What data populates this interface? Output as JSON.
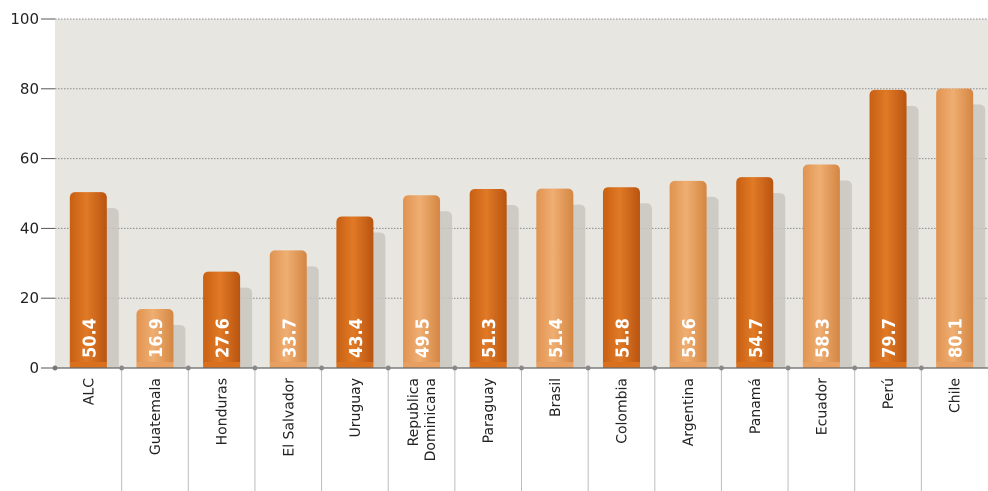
{
  "chart_data": {
    "type": "bar",
    "categories": [
      "ALC",
      "Guatemala",
      "Honduras",
      "El Salvador",
      "Uruguay",
      "Republica Dominicana",
      "Paraguay",
      "Brasil",
      "Colombia",
      "Argentina",
      "Panamá",
      "Ecuador",
      "Perú",
      "Chile"
    ],
    "category_lines": [
      [
        "ALC"
      ],
      [
        "Guatemala"
      ],
      [
        "Honduras"
      ],
      [
        "El Salvador"
      ],
      [
        "Uruguay"
      ],
      [
        "Republica",
        "Dominicana"
      ],
      [
        "Paraguay"
      ],
      [
        "Brasil"
      ],
      [
        "Colombia"
      ],
      [
        "Argentina"
      ],
      [
        "Panamá"
      ],
      [
        "Ecuador"
      ],
      [
        "Perú"
      ],
      [
        "Chile"
      ]
    ],
    "values": [
      50.4,
      16.9,
      27.6,
      33.7,
      43.4,
      49.5,
      51.3,
      51.4,
      51.8,
      53.6,
      54.7,
      58.3,
      79.7,
      80.1
    ],
    "value_labels": [
      "50.4",
      "16.9",
      "27.6",
      "33.7",
      "43.4",
      "49.5",
      "51.3",
      "51.4",
      "51.8",
      "53.6",
      "54.7",
      "58.3",
      "79.7",
      "80.1"
    ],
    "ylim": [
      0,
      100
    ],
    "yticks": [
      0,
      20,
      40,
      60,
      80,
      100
    ],
    "ytick_labels": [
      "0",
      "20",
      "40",
      "60",
      "80",
      "100"
    ],
    "grid": true,
    "title": "",
    "xlabel": "",
    "ylabel": "",
    "colors": {
      "bar_dark": "#d8701e",
      "bar_light": "#e8a062",
      "plot_background": "#e8e6e1",
      "gridline": "#8a8a8a"
    }
  }
}
